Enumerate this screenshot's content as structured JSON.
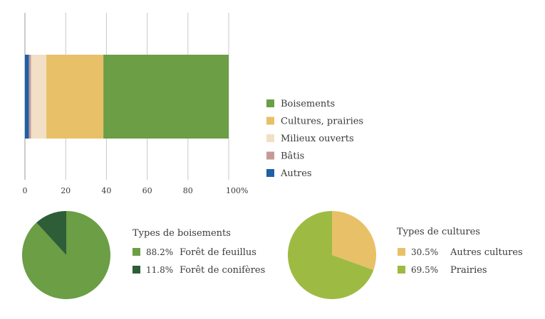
{
  "chart_data": [
    {
      "type": "bar",
      "orientation": "horizontal",
      "stacked": true,
      "x_ticks": [
        "0",
        "20",
        "40",
        "60",
        "80",
        "100%"
      ],
      "xlim": [
        0,
        100
      ],
      "grid": true,
      "legend_position": "right",
      "series": [
        {
          "name": "Autres",
          "value": 2.0,
          "color": "#1f5fa6"
        },
        {
          "name": "Bâtis",
          "value": 1.0,
          "color": "#c49a96"
        },
        {
          "name": "Milieux ouverts",
          "value": 7.5,
          "color": "#f2e0c6"
        },
        {
          "name": "Cultures, prairies",
          "value": 28.0,
          "color": "#e8c068"
        },
        {
          "name": "Boisements",
          "value": 61.5,
          "color": "#6b9e45"
        }
      ],
      "legend_order": [
        "Boisements",
        "Cultures, prairies",
        "Milieux ouverts",
        "Bâtis",
        "Autres"
      ]
    },
    {
      "type": "pie",
      "title": "Types de boisements",
      "slices": [
        {
          "label": "Forêt de feuillus",
          "value": 88.2,
          "pct_text": "88.2%",
          "color": "#6b9e45"
        },
        {
          "label": "Forêt de conifères",
          "value": 11.8,
          "pct_text": "11.8%",
          "color": "#2e5e38"
        }
      ]
    },
    {
      "type": "pie",
      "title": "Types de cultures",
      "slices": [
        {
          "label": "Autres cultures",
          "value": 30.5,
          "pct_text": "30.5%",
          "color": "#e8c068"
        },
        {
          "label": "Prairies",
          "value": 69.5,
          "pct_text": "69.5%",
          "color": "#9dbb42"
        }
      ]
    }
  ]
}
